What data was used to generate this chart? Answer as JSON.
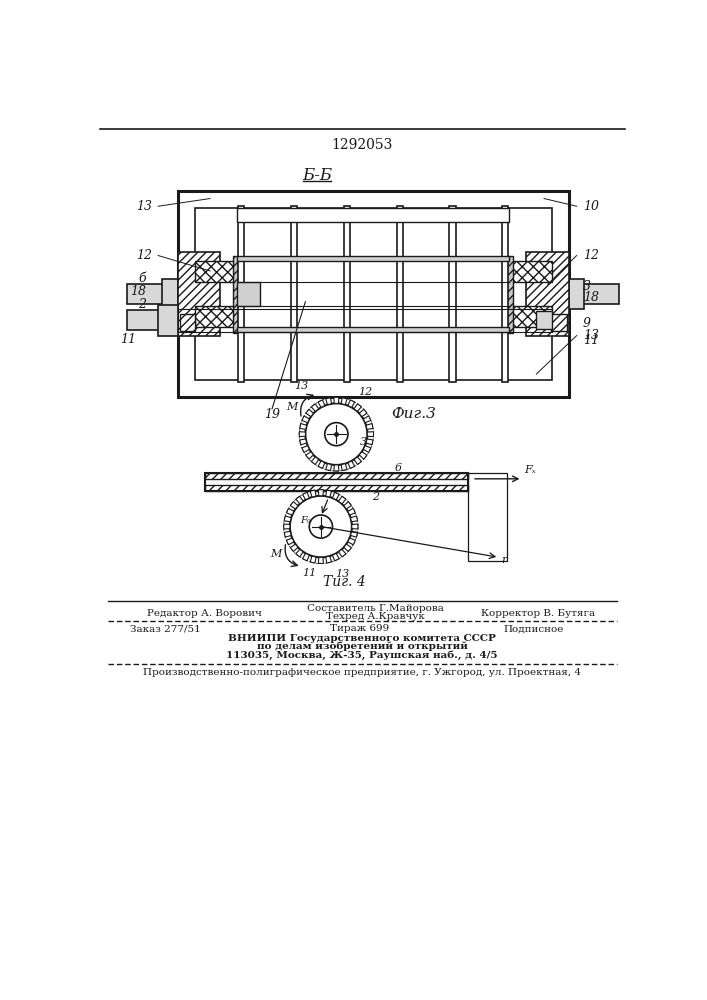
{
  "patent_number": "1292053",
  "fig3_label": "Б-Б",
  "fig3_caption": "Фиг.3",
  "fig4_caption": "Фиг.4",
  "bg_color": "#ffffff",
  "line_color": "#1a1a1a",
  "hatch_color": "#555555",
  "footer_line1_left": "Редактор А. Ворович",
  "footer_line1_center": "Составитель Г.Майорова",
  "footer_line2_center": "Техред А.Кравчук",
  "footer_line2_right": "Корректор В. Бутяга",
  "footer_zakaz": "Заказ 277/51",
  "footer_tirazh": "Тираж 699",
  "footer_podpisnoe": "Подписное",
  "footer_vnipi1": "ВНИИПИ Государственного комитета СССР",
  "footer_vnipi2": "по делам изобретений и открытий",
  "footer_vnipi3": "113035, Москва, Ж-35, Раушская наб., д. 4/5",
  "footer_bottom": "Производственно-полиграфическое предприятие, г. Ужгород, ул. Проектная, 4"
}
